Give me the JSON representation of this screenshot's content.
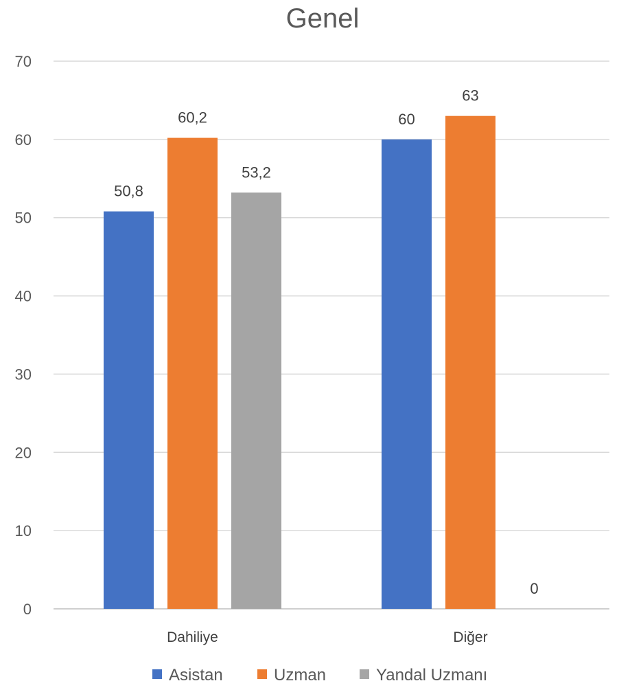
{
  "chart_data": {
    "type": "bar",
    "title": "Genel",
    "categories": [
      "Dahiliye",
      "Diğer"
    ],
    "series": [
      {
        "name": "Asistan",
        "color": "#4472C4",
        "values": [
          50.8,
          60
        ],
        "labels": [
          "50,8",
          "60"
        ]
      },
      {
        "name": "Uzman",
        "color": "#ED7D31",
        "values": [
          60.2,
          63
        ],
        "labels": [
          "60,2",
          "63"
        ]
      },
      {
        "name": "Yandal Uzmanı",
        "color": "#A5A5A5",
        "values": [
          53.2,
          0
        ],
        "labels": [
          "53,2",
          "0"
        ]
      }
    ],
    "ylim": [
      0,
      70
    ],
    "yticks": [
      0,
      10,
      20,
      30,
      40,
      50,
      60,
      70
    ],
    "xlabel": "",
    "ylabel": "",
    "grid": true,
    "legend_position": "bottom"
  }
}
